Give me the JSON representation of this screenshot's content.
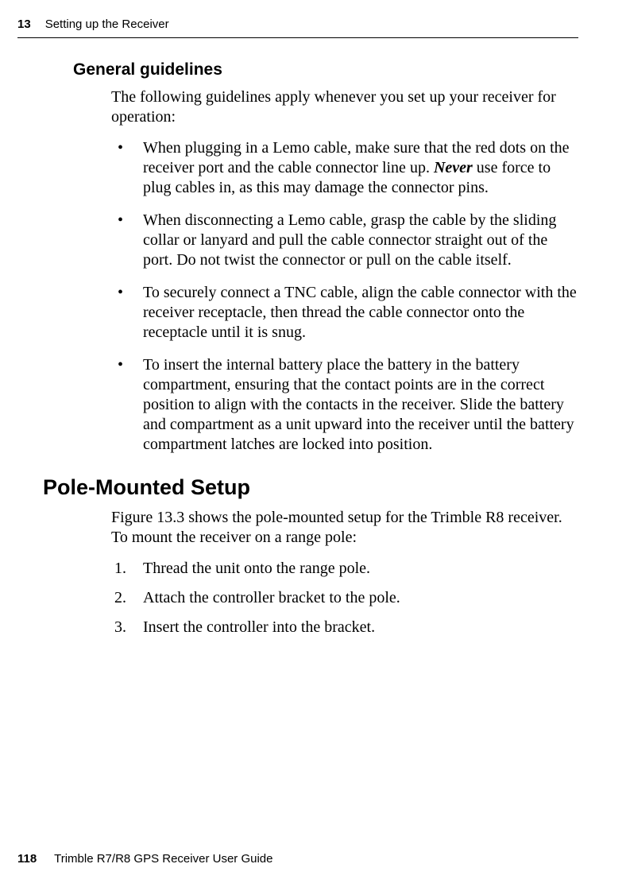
{
  "header": {
    "chapter_num": "13",
    "chapter_title": "Setting up the Receiver"
  },
  "subsection": {
    "title": "General guidelines",
    "intro": "The following guidelines apply whenever you set up your receiver for operation:",
    "bullets": [
      {
        "pre": "When plugging in a Lemo cable, make sure that the red dots on the receiver port and the cable connector line up. ",
        "emph": "Never",
        "post": " use force to plug cables in, as this may damage the connector pins."
      },
      {
        "pre": "When disconnecting a Lemo cable, grasp the cable by the sliding collar or lanyard and pull the cable connector straight out of the port. Do not twist the connector or pull on the cable itself.",
        "emph": "",
        "post": ""
      },
      {
        "pre": "To securely connect a TNC cable, align the cable connector with the receiver receptacle, then thread the cable connector onto the receptacle until it is snug.",
        "emph": "",
        "post": ""
      },
      {
        "pre": "To insert the internal battery place the battery in the battery compartment, ensuring that the contact points are in the correct position to align with the contacts in the receiver. Slide the battery and compartment as a unit upward into the receiver until the battery compartment latches are locked into position.",
        "emph": "",
        "post": ""
      }
    ]
  },
  "section2": {
    "title": "Pole-Mounted Setup",
    "intro": "Figure 13.3 shows the pole-mounted setup for the Trimble R8 receiver. To mount the receiver on a range pole:",
    "steps": [
      "Thread the unit onto the range pole.",
      "Attach the controller bracket to the pole.",
      "Insert the controller into the bracket."
    ]
  },
  "footer": {
    "page_num": "118",
    "guide_title": "Trimble R7/R8 GPS Receiver User Guide"
  }
}
